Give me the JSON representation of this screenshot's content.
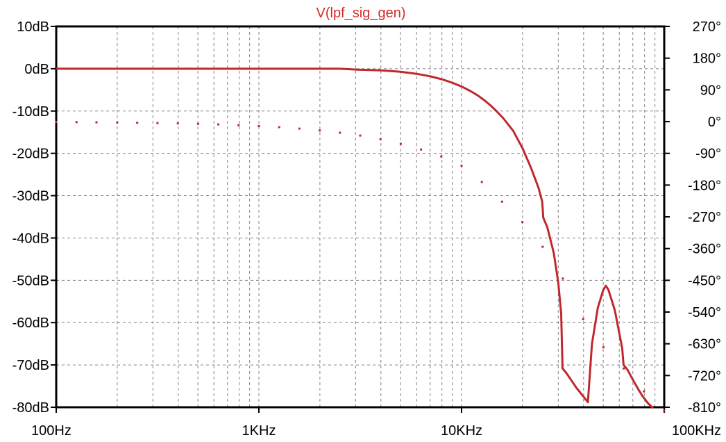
{
  "chart_data": {
    "type": "line",
    "title": "V(lpf_sig_gen)",
    "x_scale": "log",
    "x_unit": "Hz",
    "xlim": [
      100,
      100000
    ],
    "x_tick_labels": [
      {
        "value": 100,
        "label": "100Hz"
      },
      {
        "value": 1000,
        "label": "1KHz"
      },
      {
        "value": 10000,
        "label": "10KHz"
      },
      {
        "value": 100000,
        "label": "100KHz"
      }
    ],
    "ylim_left": [
      -80,
      10
    ],
    "y_left_tick_labels": [
      "10dB",
      "0dB",
      "-10dB",
      "-20dB",
      "-30dB",
      "-40dB",
      "-50dB",
      "-60dB",
      "-70dB",
      "-80dB"
    ],
    "y_left_tick_values": [
      10,
      0,
      -10,
      -20,
      -30,
      -40,
      -50,
      -60,
      -70,
      -80
    ],
    "ylim_right": [
      -810,
      270
    ],
    "y_right_tick_labels": [
      "270°",
      "180°",
      "90°",
      "0°",
      "-90°",
      "-180°",
      "-270°",
      "-360°",
      "-450°",
      "-540°",
      "-630°",
      "-720°",
      "-810°"
    ],
    "y_right_tick_values": [
      270,
      180,
      90,
      0,
      -90,
      -180,
      -270,
      -360,
      -450,
      -540,
      -630,
      -720,
      -810
    ],
    "grid": true,
    "colors": {
      "series": "#c0282d",
      "title": "#d42a2a",
      "grid": "#808080",
      "frame": "#000000"
    },
    "series": [
      {
        "kind": "magnitude",
        "axis": "left",
        "style": "solid",
        "points": [
          [
            100,
            0
          ],
          [
            500,
            0
          ],
          [
            1000,
            0
          ],
          [
            2000,
            0
          ],
          [
            2500,
            0
          ],
          [
            3000,
            -0.2
          ],
          [
            4000,
            -0.4
          ],
          [
            5000,
            -0.7
          ],
          [
            6000,
            -1.2
          ],
          [
            7000,
            -1.8
          ],
          [
            8000,
            -2.5
          ],
          [
            9000,
            -3.3
          ],
          [
            10000,
            -4.2
          ],
          [
            11000,
            -5.2
          ],
          [
            12000,
            -6.3
          ],
          [
            13000,
            -7.5
          ],
          [
            14000,
            -8.8
          ],
          [
            15000,
            -10.2
          ],
          [
            16000,
            -11.6
          ],
          [
            18000,
            -14.7
          ],
          [
            20000,
            -18.8
          ],
          [
            22000,
            -23.4
          ],
          [
            24000,
            -28.2
          ],
          [
            25000,
            -31.4
          ],
          [
            25300,
            -35.2
          ],
          [
            26500,
            -37.5
          ],
          [
            28500,
            -43.5
          ],
          [
            30000,
            -50.5
          ],
          [
            31000,
            -57.8
          ],
          [
            31500,
            -70.8
          ],
          [
            33000,
            -72
          ],
          [
            37000,
            -75.5
          ],
          [
            42000,
            -78.8
          ],
          [
            44000,
            -65
          ],
          [
            47000,
            -56.5
          ],
          [
            50000,
            -52.3
          ],
          [
            51500,
            -51.3
          ],
          [
            53000,
            -52.2
          ],
          [
            57000,
            -57
          ],
          [
            62000,
            -66
          ],
          [
            63000,
            -70
          ],
          [
            66000,
            -71.2
          ],
          [
            70000,
            -73.5
          ],
          [
            75000,
            -76
          ],
          [
            78000,
            -77.3
          ],
          [
            83000,
            -79
          ],
          [
            88000,
            -80.2
          ]
        ]
      },
      {
        "kind": "phase",
        "axis": "right",
        "style": "dotted",
        "points": [
          [
            100,
            -1
          ],
          [
            126,
            -1.5
          ],
          [
            158,
            -2
          ],
          [
            200,
            -2.5
          ],
          [
            251,
            -3.2
          ],
          [
            316,
            -4
          ],
          [
            398,
            -5
          ],
          [
            501,
            -6.3
          ],
          [
            631,
            -7.9
          ],
          [
            794,
            -10
          ],
          [
            1000,
            -12.6
          ],
          [
            1259,
            -15.8
          ],
          [
            1585,
            -19.9
          ],
          [
            1995,
            -25
          ],
          [
            2512,
            -31.5
          ],
          [
            3162,
            -39.7
          ],
          [
            3981,
            -50
          ],
          [
            5012,
            -63
          ],
          [
            6310,
            -79
          ],
          [
            7943,
            -99
          ],
          [
            10000,
            -125
          ],
          [
            12589,
            -171
          ],
          [
            15849,
            -227
          ],
          [
            19953,
            -285
          ],
          [
            25119,
            -355
          ],
          [
            31623,
            -445
          ],
          [
            39811,
            -560
          ],
          [
            50119,
            -640
          ],
          [
            63096,
            -700
          ],
          [
            79433,
            -765
          ],
          [
            100000,
            -820
          ]
        ]
      }
    ]
  }
}
